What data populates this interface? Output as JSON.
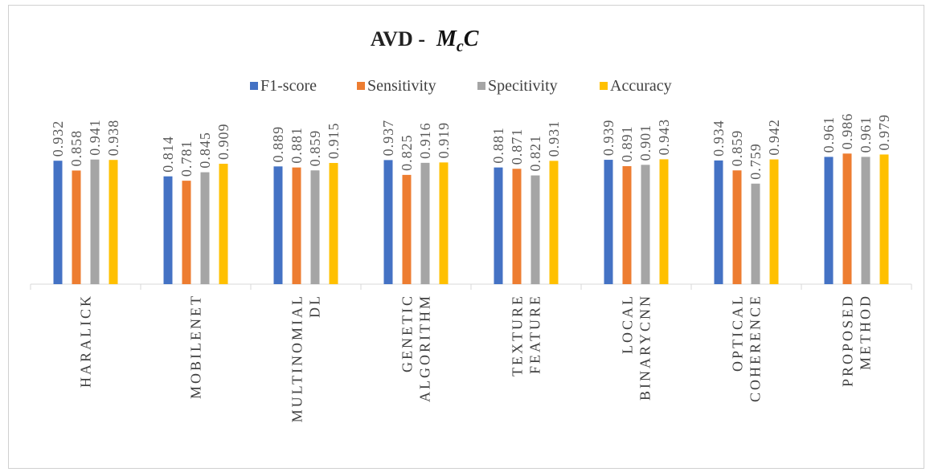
{
  "chart_data": {
    "type": "bar",
    "title": "AVD -",
    "title_symbol": {
      "main": "M",
      "sub": "c",
      "tail": "C"
    },
    "categories": [
      [
        "HARALICK"
      ],
      [
        "MOBILENET"
      ],
      [
        "MULTINOMIAL",
        "DL"
      ],
      [
        "GENETIC",
        "ALGORITHM"
      ],
      [
        "TEXTURE",
        "FEATURE"
      ],
      [
        "LOCAL",
        "BINARYCNN"
      ],
      [
        "OPTICAL",
        "COHERENCE"
      ],
      [
        "PROPOSED",
        "METHOD"
      ]
    ],
    "series": [
      {
        "name": "F1-score",
        "color": "#4472C4",
        "values": [
          0.932,
          0.814,
          0.889,
          0.937,
          0.881,
          0.939,
          0.934,
          0.961
        ]
      },
      {
        "name": "Sensitivity",
        "color": "#ED7D31",
        "values": [
          0.858,
          0.781,
          0.881,
          0.825,
          0.871,
          0.891,
          0.859,
          0.986
        ]
      },
      {
        "name": "Specitivity",
        "color": "#A5A5A5",
        "values": [
          0.941,
          0.845,
          0.859,
          0.916,
          0.821,
          0.901,
          0.759,
          0.961
        ]
      },
      {
        "name": "Accuracy",
        "color": "#FFC000",
        "values": [
          0.938,
          0.909,
          0.915,
          0.919,
          0.931,
          0.943,
          0.942,
          0.979
        ]
      }
    ],
    "value_labels": [
      [
        "0.932",
        "0.858",
        "0.941",
        "0.938"
      ],
      [
        "0.814",
        "0.781",
        "0.845",
        "0.909"
      ],
      [
        "0.889",
        "0.881",
        "0.859",
        "0.915"
      ],
      [
        "0.937",
        "0.825",
        "0.916",
        "0.919"
      ],
      [
        "0.881",
        "0.871",
        "0.821",
        "0.931"
      ],
      [
        "0.939",
        "0.891",
        "0.901",
        "0.943"
      ],
      [
        "0.934",
        "0.859",
        "0.759",
        "0.942"
      ],
      [
        "0.961",
        "0.986",
        "0.961",
        "0.979"
      ]
    ],
    "ylim": [
      0,
      1.3
    ],
    "grid": false,
    "legend_position": "top"
  }
}
